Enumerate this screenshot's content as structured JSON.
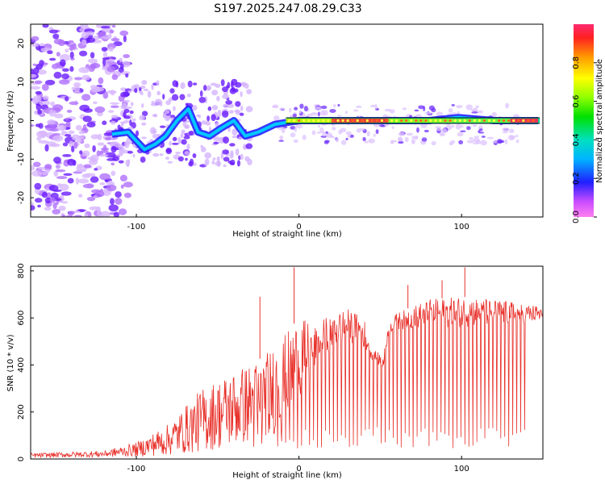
{
  "title": "S197.2025.247.08.29.C33",
  "chart_data": [
    {
      "type": "heatmap",
      "xlabel": "Height of straight line (km)",
      "ylabel": "Frequency (Hz)",
      "xlim": [
        -165,
        150
      ],
      "ylim": [
        -25,
        25
      ],
      "xticks": [
        -100,
        0,
        100
      ],
      "yticks": [
        -20,
        -10,
        0,
        10,
        20
      ],
      "colorbar": {
        "label": "Normalized spectral amplitude",
        "range": [
          0,
          1
        ],
        "ticks": [
          "0.0",
          "0.2",
          "0.4",
          "0.6",
          "0.8"
        ]
      },
      "ridge": [
        {
          "x": -115,
          "y": -3.5
        },
        {
          "x": -105,
          "y": -3
        },
        {
          "x": -95,
          "y": -7.5
        },
        {
          "x": -88,
          "y": -6
        },
        {
          "x": -82,
          "y": -4
        },
        {
          "x": -75,
          "y": 0
        },
        {
          "x": -68,
          "y": 3
        },
        {
          "x": -62,
          "y": -3
        },
        {
          "x": -55,
          "y": -4
        },
        {
          "x": -48,
          "y": -2
        },
        {
          "x": -40,
          "y": 0
        },
        {
          "x": -33,
          "y": -4
        },
        {
          "x": -25,
          "y": -3
        },
        {
          "x": -15,
          "y": -1
        },
        {
          "x": -8,
          "y": -0.5
        },
        {
          "x": 0,
          "y": 0
        },
        {
          "x": 20,
          "y": 0
        },
        {
          "x": 40,
          "y": 0
        },
        {
          "x": 60,
          "y": 0
        },
        {
          "x": 80,
          "y": 0
        },
        {
          "x": 98,
          "y": 0.8
        },
        {
          "x": 120,
          "y": 0
        },
        {
          "x": 147,
          "y": 0
        }
      ]
    },
    {
      "type": "line",
      "xlabel": "Height of straight line (km)",
      "ylabel": "SNR (10 * v/v)",
      "xlim": [
        -165,
        150
      ],
      "ylim": [
        0,
        820
      ],
      "xticks": [
        -100,
        0,
        100
      ],
      "yticks": [
        0,
        200,
        400,
        600,
        800
      ],
      "color": "#e8302a",
      "envelope": [
        {
          "x": -165,
          "lo": 5,
          "hi": 25
        },
        {
          "x": -120,
          "lo": 8,
          "hi": 35
        },
        {
          "x": -100,
          "lo": 10,
          "hi": 70
        },
        {
          "x": -80,
          "lo": 15,
          "hi": 150
        },
        {
          "x": -60,
          "lo": 30,
          "hi": 300
        },
        {
          "x": -40,
          "lo": 50,
          "hi": 380
        },
        {
          "x": -25,
          "lo": 80,
          "hi": 420
        },
        {
          "x": -10,
          "lo": 120,
          "hi": 520
        },
        {
          "x": 0,
          "lo": 250,
          "hi": 600
        },
        {
          "x": 10,
          "lo": 380,
          "hi": 570
        },
        {
          "x": 20,
          "lo": 470,
          "hi": 620
        },
        {
          "x": 30,
          "lo": 500,
          "hi": 640
        },
        {
          "x": 40,
          "lo": 470,
          "hi": 600
        },
        {
          "x": 45,
          "lo": 420,
          "hi": 470
        },
        {
          "x": 52,
          "lo": 380,
          "hi": 440
        },
        {
          "x": 55,
          "lo": 530,
          "hi": 580
        },
        {
          "x": 60,
          "lo": 550,
          "hi": 620
        },
        {
          "x": 80,
          "lo": 560,
          "hi": 680
        },
        {
          "x": 100,
          "lo": 560,
          "hi": 690
        },
        {
          "x": 120,
          "lo": 570,
          "hi": 680
        },
        {
          "x": 150,
          "lo": 580,
          "hi": 650
        }
      ],
      "spikes": [
        {
          "x": -24,
          "y": 690
        },
        {
          "x": -3,
          "y": 815
        },
        {
          "x": 102,
          "y": 815
        },
        {
          "x": 88,
          "y": 760
        },
        {
          "x": 67,
          "y": 740
        }
      ],
      "dropouts_start": -30,
      "dropout_floor": 90
    }
  ]
}
